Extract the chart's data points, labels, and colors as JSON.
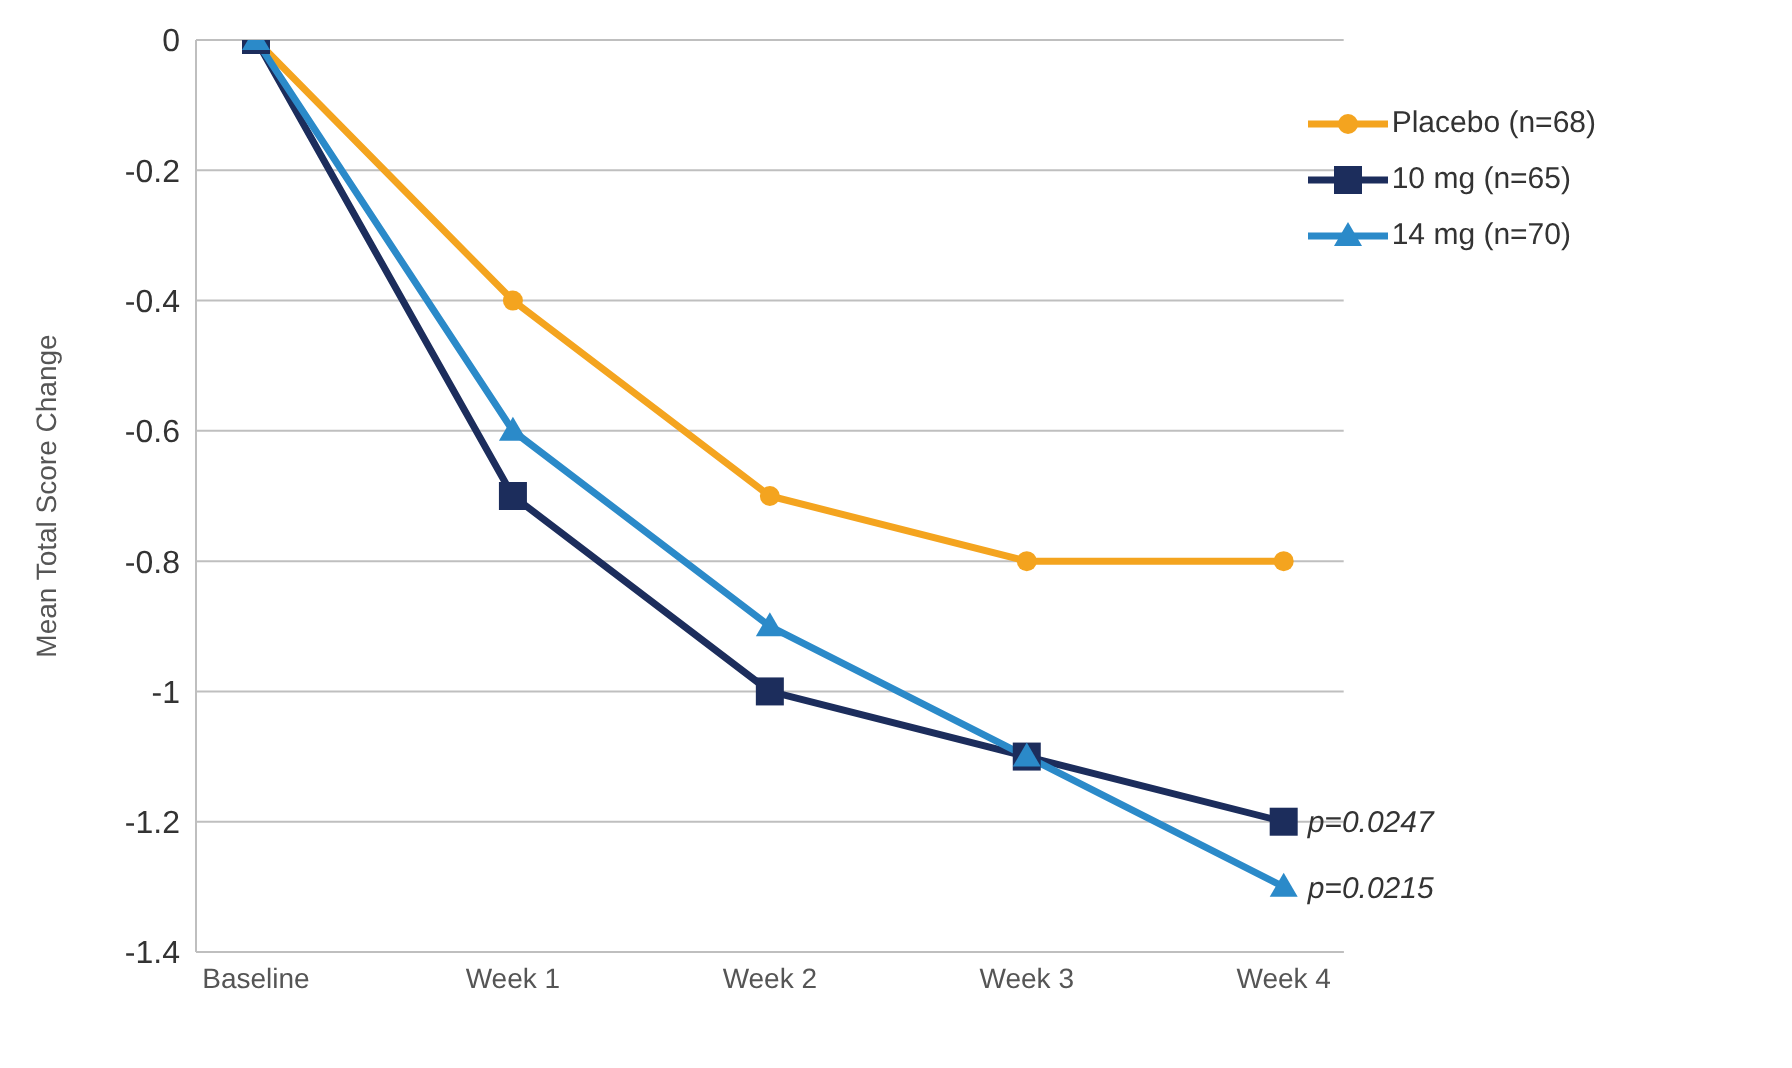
{
  "chart_data": {
    "type": "line",
    "ylabel": "Mean Total Score Change",
    "categories": [
      "Baseline",
      "Week 1",
      "Week 2",
      "Week 3",
      "Week 4"
    ],
    "series": [
      {
        "name": "Placebo (n=68)",
        "color": "#f4a41f",
        "marker": "circle",
        "values": [
          0,
          -0.4,
          -0.7,
          -0.8,
          -0.8
        ]
      },
      {
        "name": "10 mg (n=65)",
        "color": "#1c2d5c",
        "marker": "square",
        "values": [
          0,
          -0.7,
          -1.0,
          -1.1,
          -1.2
        ]
      },
      {
        "name": "14 mg (n=70)",
        "color": "#2b8ac9",
        "marker": "triangle",
        "values": [
          0,
          -0.6,
          -0.9,
          -1.1,
          -1.3
        ]
      }
    ],
    "ylim": [
      -1.4,
      0
    ],
    "yticks": [
      0,
      -0.2,
      -0.4,
      -0.6,
      -0.8,
      -1,
      -1.2,
      -1.4
    ],
    "grid": "y",
    "legend": "top right",
    "line_style": "solid",
    "annotations": [
      {
        "text": "p=0.0247",
        "x": "Week 4",
        "y": -1.2
      },
      {
        "text": "p=0.0215",
        "x": "Week 4",
        "y": -1.3
      }
    ]
  }
}
